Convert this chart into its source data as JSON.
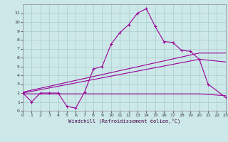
{
  "xlabel": "Windchill (Refroidissement éolien,°C)",
  "background_color": "#cce8e8",
  "grid_color": "#aacccc",
  "line_color": "#990099",
  "xlim": [
    0,
    23
  ],
  "ylim": [
    0,
    12
  ],
  "xticks": [
    0,
    1,
    2,
    3,
    4,
    5,
    6,
    7,
    8,
    9,
    10,
    11,
    12,
    13,
    14,
    15,
    16,
    17,
    18,
    19,
    20,
    21,
    22,
    23
  ],
  "yticks": [
    0,
    1,
    2,
    3,
    4,
    5,
    6,
    7,
    8,
    9,
    10,
    11
  ],
  "main_x": [
    0,
    1,
    2,
    3,
    4,
    5,
    6,
    7,
    8,
    9,
    10,
    11,
    12,
    13,
    14,
    15,
    16,
    17,
    18,
    19,
    20,
    21,
    23
  ],
  "main_y": [
    2,
    1,
    2,
    2,
    2,
    0.5,
    0.3,
    2.1,
    4.7,
    5.0,
    7.5,
    8.8,
    9.7,
    11.0,
    11.5,
    9.5,
    7.8,
    7.7,
    6.8,
    6.7,
    5.8,
    3.0,
    1.5
  ],
  "line1_x": [
    0,
    20,
    23
  ],
  "line1_y": [
    2.1,
    6.5,
    6.5
  ],
  "line2_x": [
    0,
    20,
    23
  ],
  "line2_y": [
    2.0,
    5.8,
    5.5
  ],
  "line3_x": [
    0,
    20,
    23
  ],
  "line3_y": [
    1.9,
    1.9,
    1.7
  ]
}
